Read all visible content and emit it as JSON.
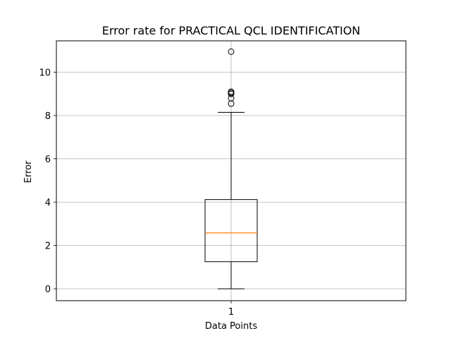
{
  "chart_data": {
    "type": "boxplot",
    "title": "Error rate for PRACTICAL QCL IDENTIFICATION",
    "xlabel": "Data Points",
    "ylabel": "Error",
    "categories": [
      "1"
    ],
    "ylim": [
      -0.55,
      11.45
    ],
    "yticks": [
      "0",
      "2",
      "4",
      "6",
      "8",
      "10"
    ],
    "grid": true,
    "box": {
      "whisker_low": 0.0,
      "q1": 1.25,
      "median": 2.58,
      "q3": 4.12,
      "whisker_high": 8.15,
      "outliers": [
        8.55,
        8.8,
        9.0,
        9.05,
        9.1,
        10.95
      ]
    },
    "colors": {
      "median": "#ff7f0e",
      "box": "#000000",
      "grid": "#b0b0b0"
    }
  }
}
